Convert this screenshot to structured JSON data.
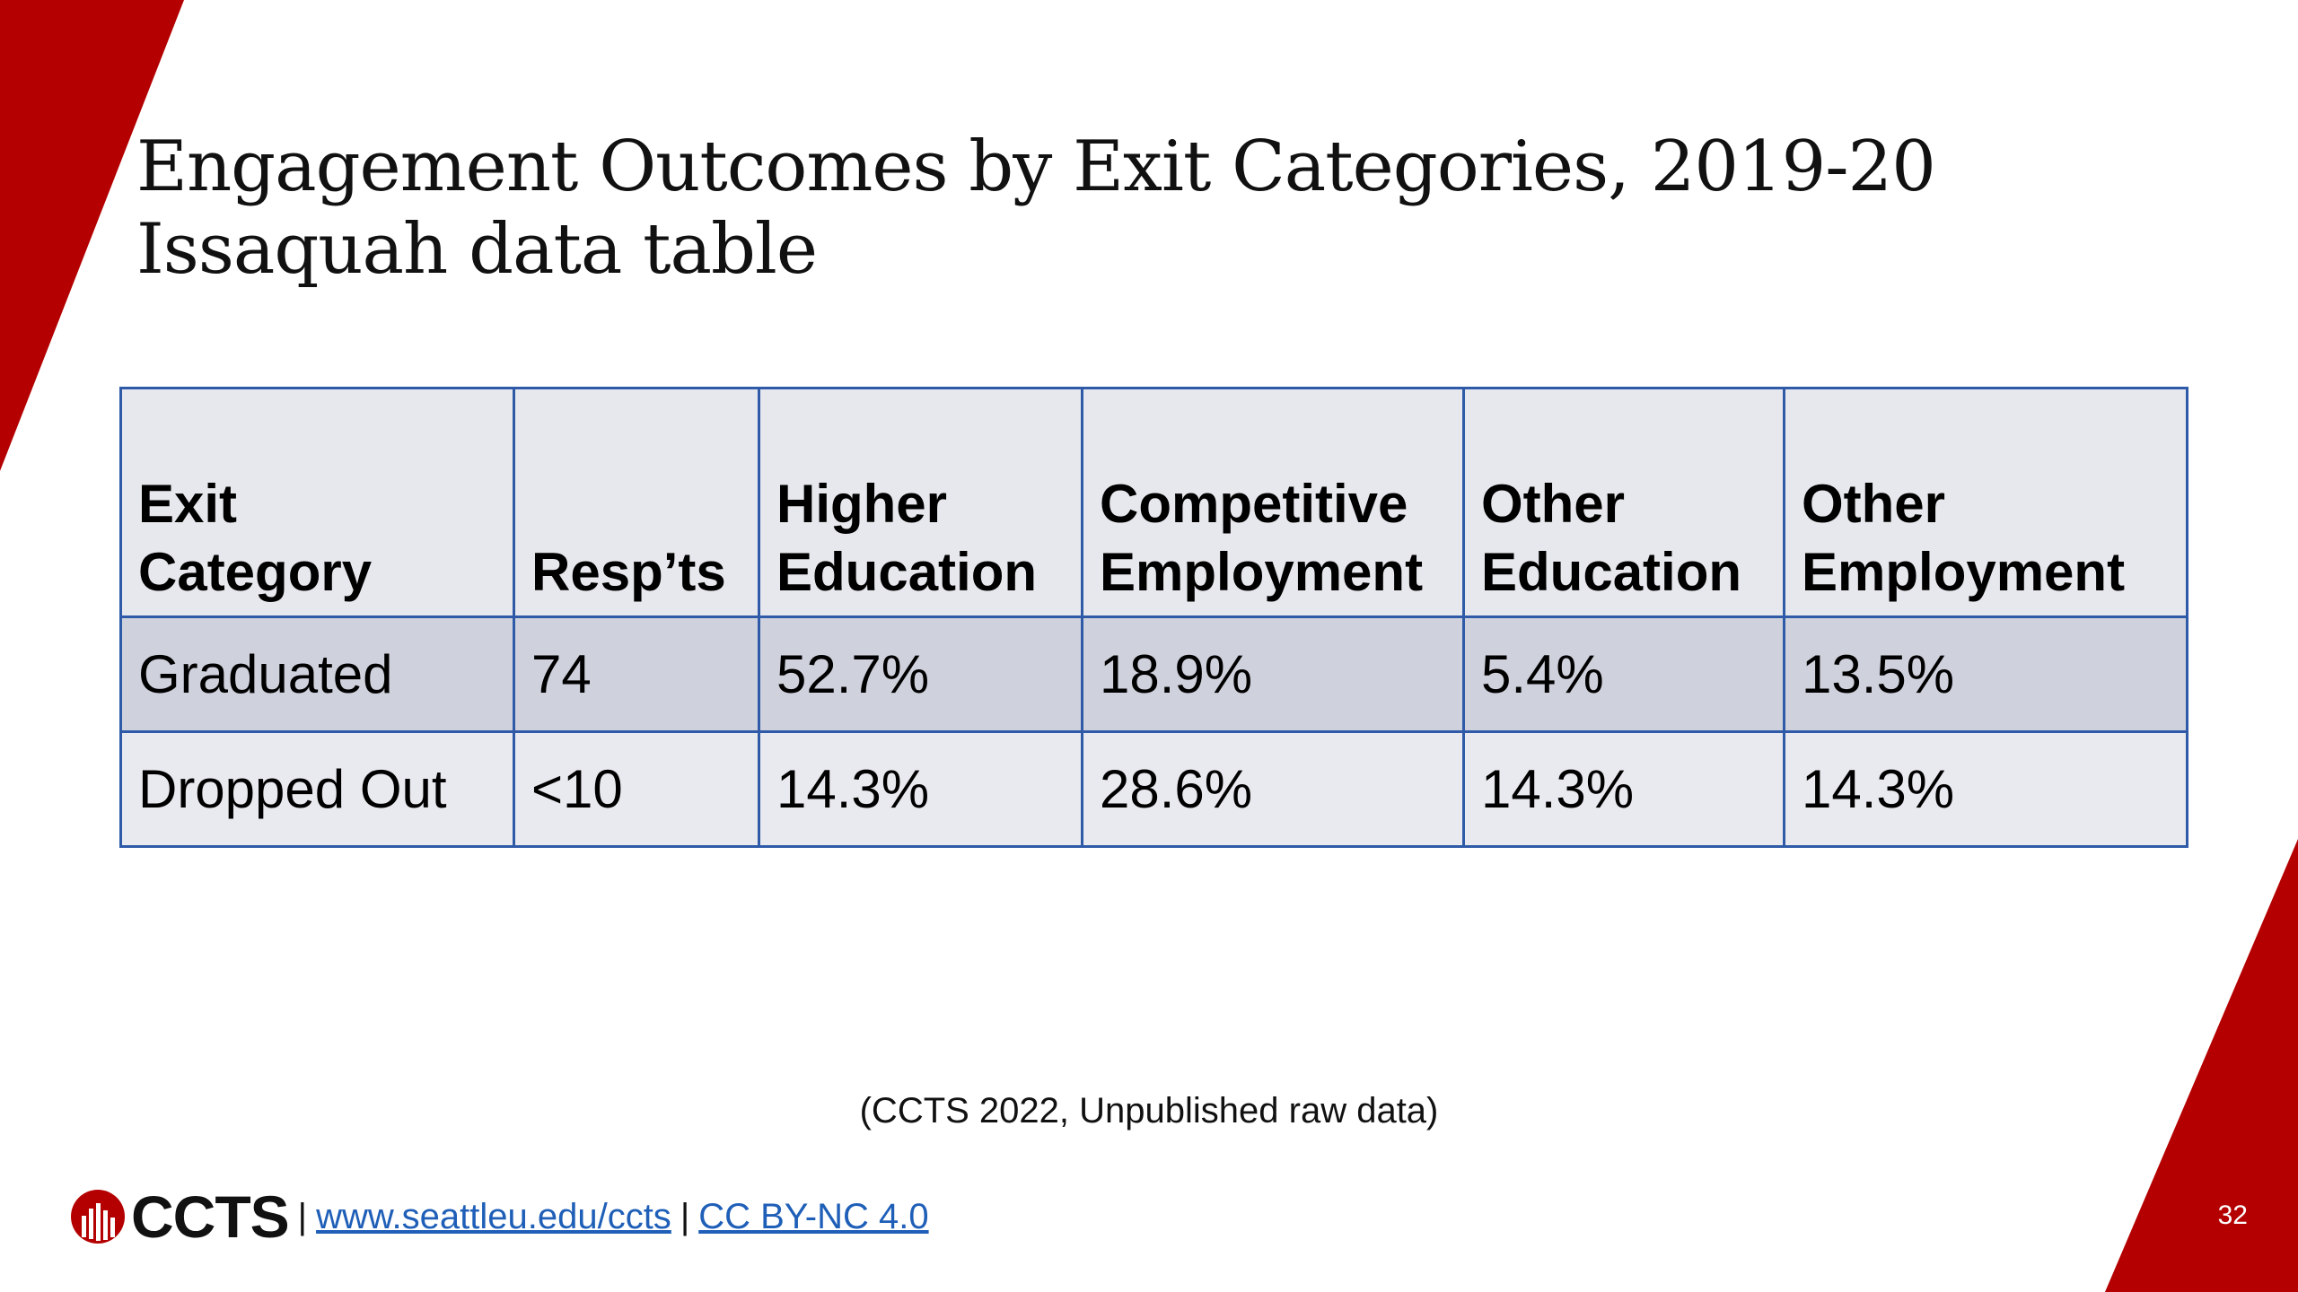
{
  "slide": {
    "title_line1": "Engagement Outcomes by Exit Categories, 2019-20",
    "title_line2": "Issaquah data table",
    "accent_color": "#b40000",
    "table_border_color": "#2e5aa8"
  },
  "table": {
    "headers": [
      {
        "line1": "Exit",
        "line2": "Category"
      },
      {
        "line1": "",
        "line2": "Resp’ts"
      },
      {
        "line1": "Higher",
        "line2": "Education"
      },
      {
        "line1": "Competitive",
        "line2": "Employment"
      },
      {
        "line1": "Other",
        "line2": "Education"
      },
      {
        "line1": "Other",
        "line2": "Employment"
      }
    ],
    "rows": [
      [
        "Graduated",
        "74",
        "52.7%",
        "18.9%",
        "5.4%",
        "13.5%"
      ],
      [
        "Dropped Out",
        "<10",
        "14.3%",
        "28.6%",
        "14.3%",
        "14.3%"
      ]
    ]
  },
  "citation": "(CCTS 2022, Unpublished raw data)",
  "footer": {
    "logo_text": "CCTS",
    "separator": "|",
    "website_link": "www.seattleu.edu/ccts",
    "license_link": "CC BY-NC 4.0",
    "logo_icon": "ccts-logo-icon"
  },
  "page_number": "32"
}
